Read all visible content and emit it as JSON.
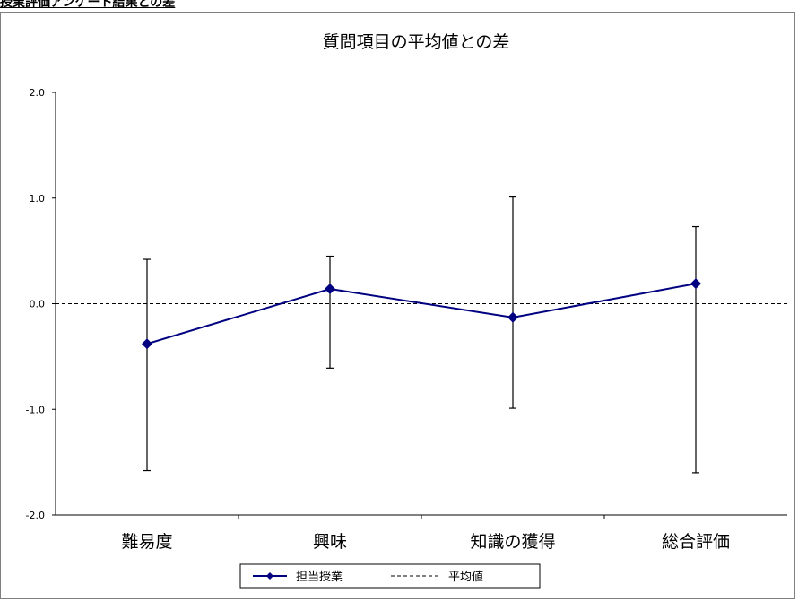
{
  "header": {
    "text": "授業評価アンケート結果との差"
  },
  "chart_data": {
    "type": "line",
    "title": "質問項目の平均値との差",
    "categories": [
      "難易度",
      "興味",
      "知識の獲得",
      "総合評価"
    ],
    "ylim": [
      -2.0,
      2.0
    ],
    "yticks": [
      "2.0",
      "1.0",
      "0.0",
      "-1.0",
      "-2.0"
    ],
    "series": [
      {
        "name": "担当授業",
        "values": [
          -0.38,
          0.14,
          -0.13,
          0.19
        ],
        "error_low": [
          -1.58,
          -0.61,
          -0.99,
          -1.6
        ],
        "error_high": [
          0.42,
          0.45,
          1.01,
          0.73
        ],
        "color": "#000080",
        "marker": "diamond"
      }
    ],
    "reference_line": {
      "name": "平均値",
      "value": 0.0,
      "style": "dashed",
      "color": "#000000"
    },
    "legend": {
      "position": "bottom-center"
    },
    "grid": false
  }
}
